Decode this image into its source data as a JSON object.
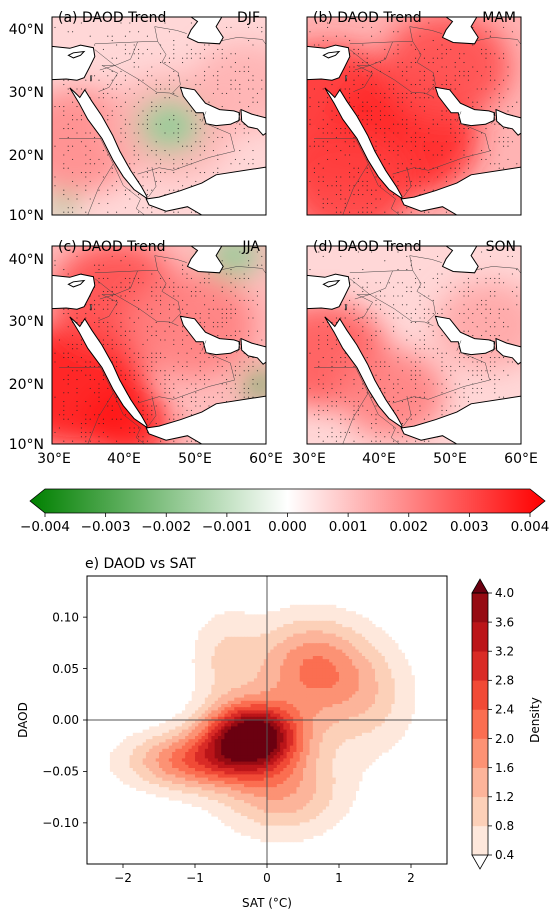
{
  "panels": [
    {
      "id": "a",
      "label": "(a)  DAOD Trend",
      "season": "DJF",
      "intensity": 0.45,
      "stipple": 0.55,
      "blobs": [
        [
          0.12,
          0.62,
          0.3,
          0.45
        ],
        [
          0.55,
          0.55,
          0.3,
          0.3
        ],
        [
          0.9,
          0.35,
          0.25,
          0.3
        ]
      ],
      "greens": [
        [
          0.55,
          0.55,
          0.15,
          0.4
        ],
        [
          0.05,
          0.95,
          0.06,
          0.5
        ]
      ]
    },
    {
      "id": "b",
      "label": "(b)  DAOD Trend",
      "season": "MAM",
      "intensity": 0.85,
      "stipple": 0.75,
      "blobs": [
        [
          0.1,
          0.5,
          0.4,
          0.8
        ],
        [
          0.45,
          0.6,
          0.35,
          0.85
        ],
        [
          0.65,
          0.25,
          0.3,
          0.7
        ],
        [
          0.2,
          0.85,
          0.3,
          0.75
        ]
      ],
      "greens": []
    },
    {
      "id": "c",
      "label": "(c)  DAOD Trend",
      "season": "JJA",
      "intensity": 0.75,
      "stipple": 0.7,
      "blobs": [
        [
          0.1,
          0.7,
          0.35,
          0.9
        ],
        [
          0.35,
          0.9,
          0.2,
          0.9
        ],
        [
          0.3,
          0.25,
          0.3,
          0.7
        ],
        [
          0.65,
          0.4,
          0.3,
          0.5
        ]
      ],
      "greens": [
        [
          0.85,
          0.05,
          0.12,
          0.4
        ],
        [
          0.97,
          0.7,
          0.07,
          0.7
        ]
      ]
    },
    {
      "id": "d",
      "label": "(d)  DAOD Trend",
      "season": "SON",
      "intensity": 0.45,
      "stipple": 0.7,
      "blobs": [
        [
          0.08,
          0.55,
          0.3,
          0.65
        ],
        [
          0.4,
          0.75,
          0.25,
          0.5
        ],
        [
          0.85,
          0.4,
          0.25,
          0.35
        ]
      ],
      "greens": []
    }
  ],
  "map_axes": {
    "lat_ticks": [
      "10°N",
      "20°N",
      "30°N",
      "40°N"
    ],
    "lon_ticks": [
      "30°E",
      "40°E",
      "50°E",
      "60°E"
    ]
  },
  "trend_colorbar": {
    "ticks": [
      "−0.004",
      "−0.003",
      "−0.002",
      "−0.001",
      "0.000",
      "0.001",
      "0.002",
      "0.003",
      "0.004"
    ],
    "vmin": -0.004,
    "vmax": 0.004,
    "colors": {
      "neg": "#008000",
      "mid": "#ffffff",
      "pos": "#ff0000"
    }
  },
  "chart_data": {
    "type": "contour-density",
    "title": "e) DAOD vs SAT",
    "xlabel": "SAT (°C)",
    "ylabel": "DAOD",
    "xlim": [
      -2.5,
      2.5
    ],
    "ylim": [
      -0.14,
      0.14
    ],
    "xticks": [
      -2,
      -1,
      0,
      1,
      2
    ],
    "yticks": [
      -0.1,
      -0.05,
      0.0,
      0.05,
      0.1
    ],
    "xtick_labels": [
      "−2",
      "−1",
      "0",
      "1",
      "2"
    ],
    "ytick_labels": [
      "−0.10",
      "−0.05",
      "0.00",
      "0.05",
      "0.10"
    ],
    "reference_lines": {
      "x": 0,
      "y": 0
    },
    "levels": [
      0.4,
      0.8,
      1.2,
      1.6,
      2.0,
      2.4,
      2.8,
      3.2,
      3.6,
      4.0
    ],
    "colorbar_label": "Density",
    "colorbar_ticks": [
      "0.4",
      "0.8",
      "1.2",
      "1.6",
      "2.0",
      "2.4",
      "2.8",
      "3.2",
      "3.6",
      "4.0"
    ],
    "level_colors": [
      "#fee8dc",
      "#fcd0b8",
      "#fcb49a",
      "#fc9274",
      "#fb6e51",
      "#f14a36",
      "#d92b26",
      "#bb1519",
      "#960b13",
      "#6b0010"
    ],
    "components": [
      {
        "mx": -0.2,
        "my": -0.015,
        "sx": 0.45,
        "sy": 0.022,
        "w": 1.0
      },
      {
        "mx": -1.0,
        "my": -0.04,
        "sx": 0.65,
        "sy": 0.02,
        "w": 0.5
      },
      {
        "mx": 0.6,
        "my": 0.05,
        "sx": 0.55,
        "sy": 0.035,
        "w": 0.45
      },
      {
        "mx": 0.2,
        "my": -0.07,
        "sx": 0.6,
        "sy": 0.03,
        "w": 0.35
      },
      {
        "mx": 1.4,
        "my": 0.02,
        "sx": 0.5,
        "sy": 0.04,
        "w": 0.2
      },
      {
        "mx": -0.6,
        "my": 0.06,
        "sx": 0.35,
        "sy": 0.035,
        "w": 0.18
      }
    ]
  }
}
